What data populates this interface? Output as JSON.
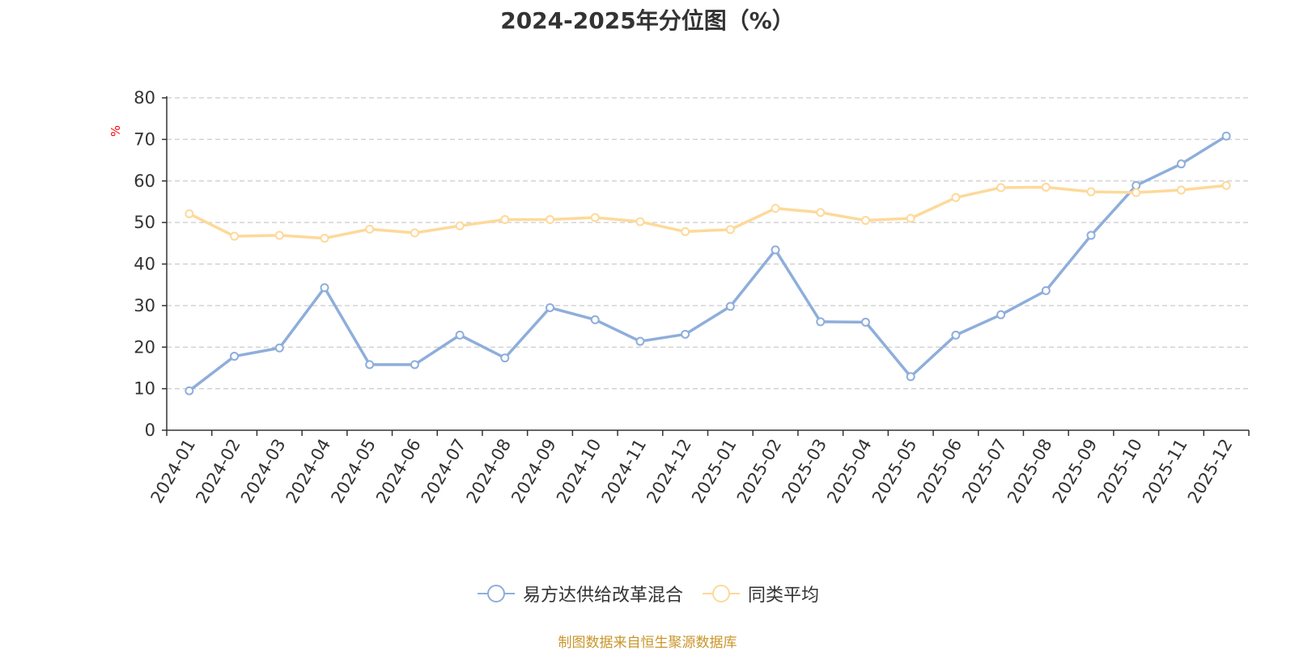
{
  "chart_data": {
    "type": "line",
    "title": "2024-2025年分位图（%）",
    "ylabel": "%",
    "xlabel": "",
    "ylim": [
      0,
      80
    ],
    "yticks": [
      0,
      10,
      20,
      30,
      40,
      50,
      60,
      70,
      80
    ],
    "grid": true,
    "legend_position": "bottom-center",
    "categories": [
      "2024-01",
      "2024-02",
      "2024-03",
      "2024-04",
      "2024-05",
      "2024-06",
      "2024-07",
      "2024-08",
      "2024-09",
      "2024-10",
      "2024-11",
      "2024-12",
      "2025-01",
      "2025-02",
      "2025-03",
      "2025-04",
      "2025-05",
      "2025-06",
      "2025-07",
      "2025-08",
      "2025-09",
      "2025-10",
      "2025-11",
      "2025-12"
    ],
    "series": [
      {
        "name": "易方达供给改革混合",
        "color": "#8eaedb",
        "values": [
          9.5,
          17.8,
          19.8,
          34.3,
          15.8,
          15.8,
          22.9,
          17.4,
          29.5,
          26.6,
          21.4,
          23.1,
          29.8,
          43.4,
          26.1,
          26.0,
          12.9,
          22.9,
          27.8,
          33.6,
          46.9,
          58.9,
          64.1,
          70.8
        ]
      },
      {
        "name": "同类平均",
        "color": "#fdd99a",
        "values": [
          52.1,
          46.7,
          46.9,
          46.2,
          48.4,
          47.5,
          49.2,
          50.7,
          50.7,
          51.2,
          50.2,
          47.8,
          48.3,
          53.4,
          52.4,
          50.5,
          51.0,
          56.0,
          58.4,
          58.5,
          57.4,
          57.2,
          57.8,
          58.9
        ]
      }
    ]
  },
  "source_note": "制图数据来自恒生聚源数据库"
}
